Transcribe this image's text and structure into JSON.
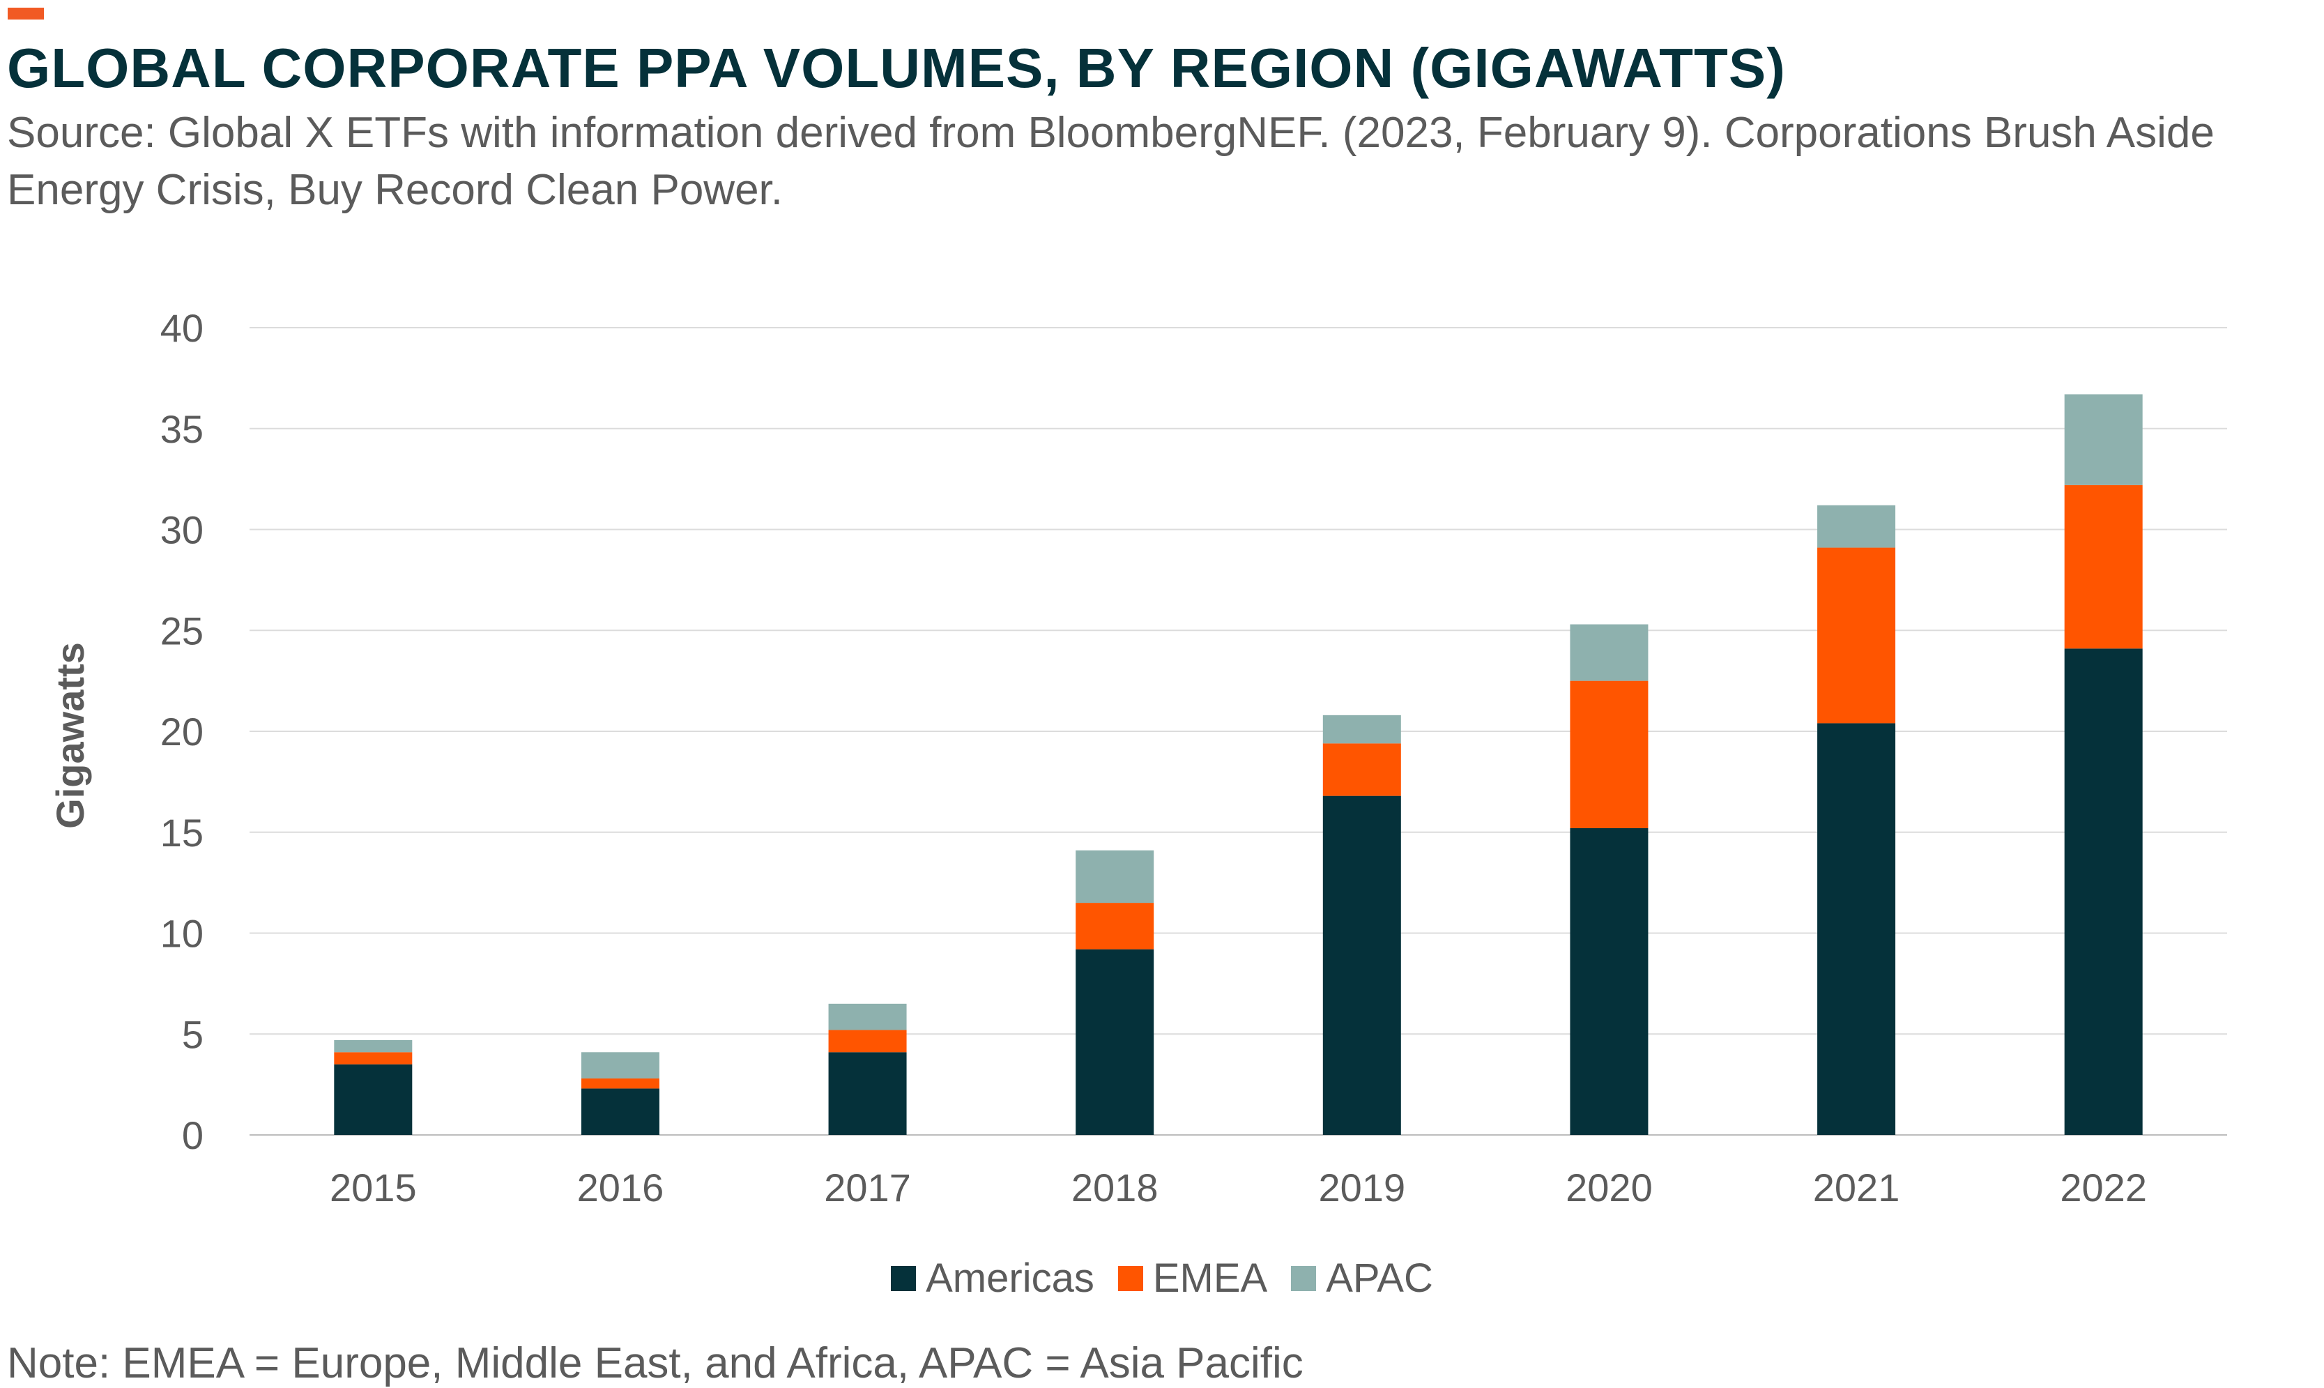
{
  "header": {
    "title": "GLOBAL CORPORATE PPA VOLUMES, BY REGION (GIGAWATTS)",
    "source": "Source: Global X ETFs with information derived from BloombergNEF. (2023, February 9). Corporations Brush Aside Energy Crisis, Buy Record Clean Power."
  },
  "footer": {
    "note": "Note: EMEA = Europe, Middle East, and Africa, APAC = Asia Pacific"
  },
  "colors": {
    "accent": "#f15a24",
    "title": "#05313a",
    "grid": "#dcdcdc"
  },
  "chart_data": {
    "type": "bar",
    "stacked": true,
    "title": "GLOBAL CORPORATE PPA VOLUMES, BY REGION (GIGAWATTS)",
    "xlabel": "",
    "ylabel": "Gigawatts",
    "ylim": [
      0,
      40
    ],
    "yticks": [
      0,
      5,
      10,
      15,
      20,
      25,
      30,
      35,
      40
    ],
    "grid": true,
    "legend_position": "bottom",
    "categories": [
      "2015",
      "2016",
      "2017",
      "2018",
      "2019",
      "2020",
      "2021",
      "2022"
    ],
    "series": [
      {
        "name": "Americas",
        "color": "#05313a",
        "values": [
          3.5,
          2.3,
          4.1,
          9.2,
          16.8,
          15.2,
          20.4,
          24.1
        ]
      },
      {
        "name": "EMEA",
        "color": "#ff5500",
        "values": [
          0.6,
          0.5,
          1.1,
          2.3,
          2.6,
          7.3,
          8.7,
          8.1
        ]
      },
      {
        "name": "APAC",
        "color": "#8eb1ae",
        "values": [
          0.6,
          1.3,
          1.3,
          2.6,
          1.4,
          2.8,
          2.1,
          4.5
        ]
      }
    ]
  }
}
